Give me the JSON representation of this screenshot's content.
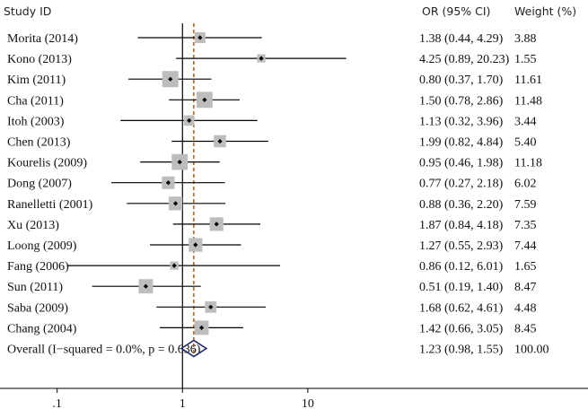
{
  "chart_data": {
    "type": "forest",
    "headers": {
      "study": "Study ID",
      "estimate": "OR (95% CI)",
      "weight": "Weight (%)"
    },
    "x_scale": "log",
    "xlim": [
      0.035,
      80
    ],
    "x_ticks": [
      {
        "value": 0.1,
        "label": ".1"
      },
      {
        "value": 1,
        "label": "1"
      },
      {
        "value": 10,
        "label": "10"
      }
    ],
    "null_line": 1,
    "studies": [
      {
        "name": "Morita (2014)",
        "or": 1.38,
        "lo": 0.44,
        "hi": 4.29,
        "ci_text": "1.38 (0.44, 4.29)",
        "weight": 3.88,
        "weight_text": "3.88"
      },
      {
        "name": "Kono (2013)",
        "or": 4.25,
        "lo": 0.89,
        "hi": 20.23,
        "ci_text": "4.25 (0.89, 20.23)",
        "weight": 1.55,
        "weight_text": "1.55"
      },
      {
        "name": "Kim (2011)",
        "or": 0.8,
        "lo": 0.37,
        "hi": 1.7,
        "ci_text": "0.80 (0.37, 1.70)",
        "weight": 11.61,
        "weight_text": "11.61"
      },
      {
        "name": "Cha (2011)",
        "or": 1.5,
        "lo": 0.78,
        "hi": 2.86,
        "ci_text": "1.50 (0.78, 2.86)",
        "weight": 11.48,
        "weight_text": "11.48"
      },
      {
        "name": "Itoh (2003)",
        "or": 1.13,
        "lo": 0.32,
        "hi": 3.96,
        "ci_text": "1.13 (0.32, 3.96)",
        "weight": 3.44,
        "weight_text": "3.44"
      },
      {
        "name": "Chen (2013)",
        "or": 1.99,
        "lo": 0.82,
        "hi": 4.84,
        "ci_text": "1.99 (0.82, 4.84)",
        "weight": 5.4,
        "weight_text": "5.40"
      },
      {
        "name": "Kourelis (2009)",
        "or": 0.95,
        "lo": 0.46,
        "hi": 1.98,
        "ci_text": "0.95 (0.46, 1.98)",
        "weight": 11.18,
        "weight_text": "11.18"
      },
      {
        "name": "Dong (2007)",
        "or": 0.77,
        "lo": 0.27,
        "hi": 2.18,
        "ci_text": "0.77 (0.27, 2.18)",
        "weight": 6.02,
        "weight_text": "6.02"
      },
      {
        "name": "Ranelletti (2001)",
        "or": 0.88,
        "lo": 0.36,
        "hi": 2.2,
        "ci_text": "0.88 (0.36, 2.20)",
        "weight": 7.59,
        "weight_text": "7.59"
      },
      {
        "name": "Xu (2013)",
        "or": 1.87,
        "lo": 0.84,
        "hi": 4.18,
        "ci_text": "1.87 (0.84, 4.18)",
        "weight": 7.35,
        "weight_text": "7.35"
      },
      {
        "name": "Loong (2009)",
        "or": 1.27,
        "lo": 0.55,
        "hi": 2.93,
        "ci_text": "1.27 (0.55, 2.93)",
        "weight": 7.44,
        "weight_text": "7.44"
      },
      {
        "name": "Fang (2006)",
        "or": 0.86,
        "lo": 0.12,
        "hi": 6.01,
        "ci_text": "0.86 (0.12, 6.01)",
        "weight": 1.65,
        "weight_text": "1.65"
      },
      {
        "name": "Sun (2011)",
        "or": 0.51,
        "lo": 0.19,
        "hi": 1.4,
        "ci_text": "0.51 (0.19, 1.40)",
        "weight": 8.47,
        "weight_text": "8.47"
      },
      {
        "name": "Saba (2009)",
        "or": 1.68,
        "lo": 0.62,
        "hi": 4.61,
        "ci_text": "1.68 (0.62, 4.61)",
        "weight": 4.48,
        "weight_text": "4.48"
      },
      {
        "name": "Chang (2004)",
        "or": 1.42,
        "lo": 0.66,
        "hi": 3.05,
        "ci_text": "1.42 (0.66, 3.05)",
        "weight": 8.45,
        "weight_text": "8.45"
      }
    ],
    "overall": {
      "name": "Overall  (I−squared = 0.0%, p = 0.636)",
      "or": 1.23,
      "lo": 0.98,
      "hi": 1.55,
      "ci_text": "1.23 (0.98, 1.55)",
      "weight": 100.0,
      "weight_text": "100.00"
    },
    "colors": {
      "ci_line": "#000000",
      "weight_box": "#bdbdbd",
      "point": "#000000",
      "null_line": "#000000",
      "overall_line": "#b5651d",
      "diamond": "#1f2a6b"
    },
    "grid": false
  }
}
